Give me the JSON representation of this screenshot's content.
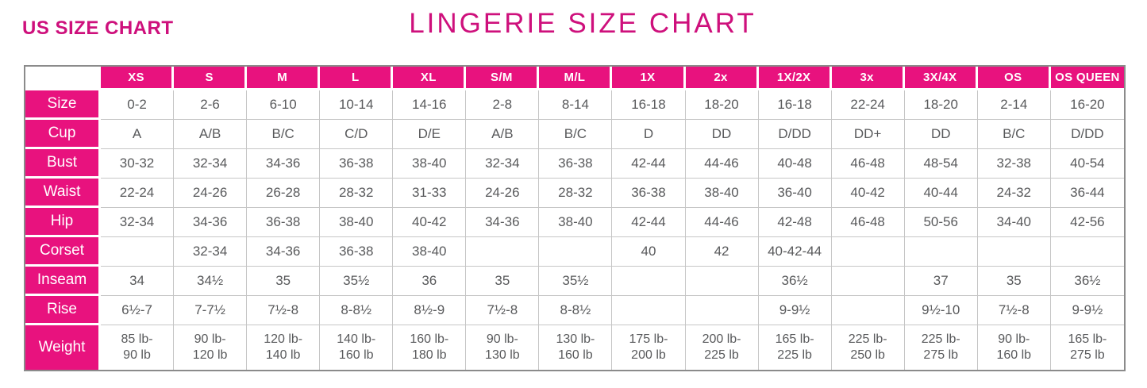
{
  "page": {
    "subtitle": "US SIZE CHART",
    "title": "LINGERIE SIZE CHART"
  },
  "colors": {
    "pink": "#e8127e",
    "title_pink": "#ce107c",
    "data_text": "#58595b",
    "grid_line": "#c6c6c6",
    "outer_border": "#8b8b8b"
  },
  "chart_data": {
    "type": "table",
    "title": "LINGERIE SIZE CHART",
    "subtitle": "US SIZE CHART",
    "columns": [
      "XS",
      "S",
      "M",
      "L",
      "XL",
      "S/M",
      "M/L",
      "1X",
      "2x",
      "1X/2X",
      "3x",
      "3X/4X",
      "OS",
      "OS QUEEN"
    ],
    "rows": [
      {
        "label": "Size",
        "values": [
          "0-2",
          "2-6",
          "6-10",
          "10-14",
          "14-16",
          "2-8",
          "8-14",
          "16-18",
          "18-20",
          "16-18",
          "22-24",
          "18-20",
          "2-14",
          "16-20"
        ]
      },
      {
        "label": "Cup",
        "values": [
          "A",
          "A/B",
          "B/C",
          "C/D",
          "D/E",
          "A/B",
          "B/C",
          "D",
          "DD",
          "D/DD",
          "DD+",
          "DD",
          "B/C",
          "D/DD"
        ]
      },
      {
        "label": "Bust",
        "values": [
          "30-32",
          "32-34",
          "34-36",
          "36-38",
          "38-40",
          "32-34",
          "36-38",
          "42-44",
          "44-46",
          "40-48",
          "46-48",
          "48-54",
          "32-38",
          "40-54"
        ]
      },
      {
        "label": "Waist",
        "values": [
          "22-24",
          "24-26",
          "26-28",
          "28-32",
          "31-33",
          "24-26",
          "28-32",
          "36-38",
          "38-40",
          "36-40",
          "40-42",
          "40-44",
          "24-32",
          "36-44"
        ]
      },
      {
        "label": "Hip",
        "values": [
          "32-34",
          "34-36",
          "36-38",
          "38-40",
          "40-42",
          "34-36",
          "38-40",
          "42-44",
          "44-46",
          "42-48",
          "46-48",
          "50-56",
          "34-40",
          "42-56"
        ]
      },
      {
        "label": "Corset",
        "values": [
          "",
          "32-34",
          "34-36",
          "36-38",
          "38-40",
          "",
          "",
          "40",
          "42",
          "40-42-44",
          "",
          "",
          "",
          ""
        ]
      },
      {
        "label": "Inseam",
        "values": [
          "34",
          "34½",
          "35",
          "35½",
          "36",
          "35",
          "35½",
          "",
          "",
          "36½",
          "",
          "37",
          "35",
          "36½"
        ]
      },
      {
        "label": "Rise",
        "values": [
          "6½-7",
          "7-7½",
          "7½-8",
          "8-8½",
          "8½-9",
          "7½-8",
          "8-8½",
          "",
          "",
          "9-9½",
          "",
          "9½-10",
          "7½-8",
          "9-9½"
        ]
      },
      {
        "label": "Weight",
        "values": [
          "85 lb-\n90 lb",
          "90 lb-\n120 lb",
          "120 lb-\n140 lb",
          "140 lb-\n160 lb",
          "160 lb-\n180 lb",
          "90 lb-\n130 lb",
          "130 lb-\n160 lb",
          "175 lb-\n200 lb",
          "200 lb-\n225 lb",
          "165 lb-\n225 lb",
          "225 lb-\n250 lb",
          "225 lb-\n275 lb",
          "90 lb-\n160 lb",
          "165 lb-\n275 lb"
        ]
      }
    ]
  }
}
